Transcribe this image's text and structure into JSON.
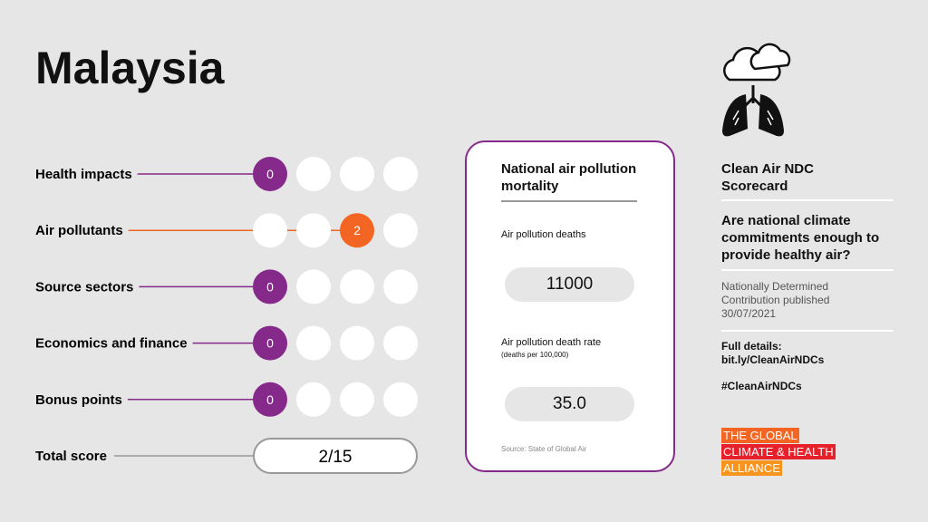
{
  "header": {
    "title": "Malaysia"
  },
  "scores": [
    {
      "label": "Health impacts",
      "score": 0,
      "color": "#85298a"
    },
    {
      "label": "Air pollutants",
      "score": 2,
      "color": "#f26522"
    },
    {
      "label": "Source sectors",
      "score": 0,
      "color": "#85298a"
    },
    {
      "label": "Economics and finance",
      "score": 0,
      "color": "#85298a"
    },
    {
      "label": "Bonus points",
      "score": 0,
      "color": "#85298a"
    }
  ],
  "total": {
    "label": "Total score",
    "value": "2/15"
  },
  "mortality": {
    "title": "National air pollution mortality",
    "deaths_label": "Air pollution deaths",
    "deaths": "11000",
    "rate_label": "Air pollution death rate",
    "rate_unit": "(deaths per 100,000)",
    "rate": "35.0",
    "source": "Source: State of Global Air"
  },
  "sidebar": {
    "heading": "Clean Air NDC Scorecard",
    "question": "Are national climate commitments enough to provide healthy air?",
    "published": "Nationally Determined Contribution published 30/07/2021",
    "details_label": "Full details:",
    "details_link": "bit.ly/CleanAirNDCs",
    "hashtag": "#CleanAirNDCs",
    "logo": [
      "THE GLOBAL",
      "CLIMATE & HEALTH",
      "ALLIANCE"
    ]
  }
}
